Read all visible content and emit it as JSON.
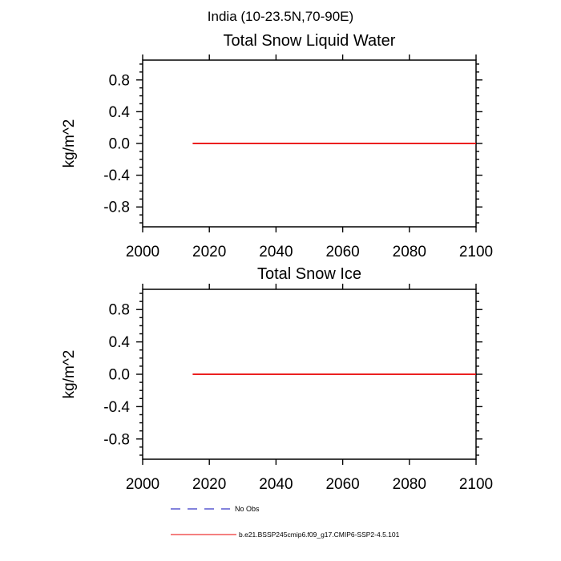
{
  "figure": {
    "title": "India (10-23.5N,70-90E)"
  },
  "chart_data": [
    {
      "type": "line",
      "title": "Total Snow Liquid Water",
      "xlabel": "",
      "ylabel": "kg/m^2",
      "xlim": [
        2000,
        2100
      ],
      "ylim": [
        -1.05,
        1.05
      ],
      "x_ticks": [
        2000,
        2020,
        2040,
        2060,
        2080,
        2100
      ],
      "y_major_ticks": [
        -0.8,
        -0.4,
        0.0,
        0.4,
        0.8
      ],
      "y_minor_step": 0.1,
      "grid": false,
      "series": [
        {
          "name": "b.e21.BSSP245cmip6.f09_g17.CMIP6-SSP2-4.5.101",
          "color": "#e80000",
          "x": [
            2015,
            2100
          ],
          "y": [
            0.0,
            0.0
          ]
        }
      ]
    },
    {
      "type": "line",
      "title": "Total Snow Ice",
      "xlabel": "",
      "ylabel": "kg/m^2",
      "xlim": [
        2000,
        2100
      ],
      "ylim": [
        -1.05,
        1.05
      ],
      "x_ticks": [
        2000,
        2020,
        2040,
        2060,
        2080,
        2100
      ],
      "y_major_ticks": [
        -0.8,
        -0.4,
        0.0,
        0.4,
        0.8
      ],
      "y_minor_step": 0.1,
      "grid": false,
      "series": [
        {
          "name": "b.e21.BSSP245cmip6.f09_g17.CMIP6-SSP2-4.5.101",
          "color": "#e80000",
          "x": [
            2015,
            2100
          ],
          "y": [
            0.0,
            0.0
          ]
        }
      ]
    }
  ],
  "legend": {
    "position": "bottom",
    "items": [
      {
        "label": "No Obs",
        "color": "#5a5ad0",
        "style": "dashed"
      },
      {
        "label": "b.e21.BSSP245cmip6.f09_g17.CMIP6-SSP2-4.5.101",
        "color": "#e80000",
        "style": "solid"
      }
    ]
  },
  "colors": {
    "axis": "#000000",
    "background": "#ffffff",
    "series_red": "#e80000",
    "no_obs_blue": "#5a5ad0"
  }
}
